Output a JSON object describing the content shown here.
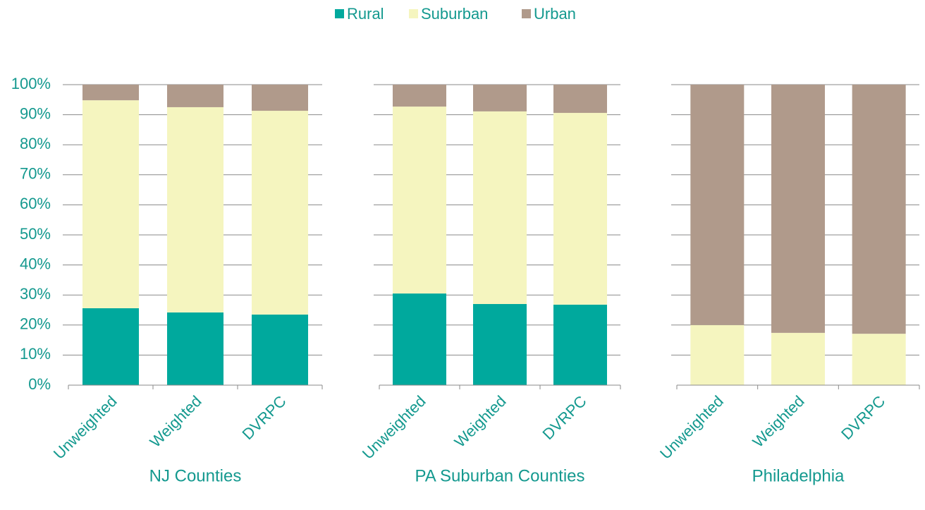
{
  "chart_data": [
    {
      "type": "bar",
      "stacked": true,
      "xlabel": "NJ Counties",
      "categories": [
        "Unweighted",
        "Weighted",
        "DVRPC"
      ],
      "series": [
        {
          "name": "Rural",
          "color": "#00a99d",
          "values": [
            25.6,
            24.2,
            23.5
          ]
        },
        {
          "name": "Suburban",
          "color": "#f5f5bf",
          "values": [
            69.2,
            68.3,
            67.8
          ]
        },
        {
          "name": "Urban",
          "color": "#b09a8b",
          "values": [
            5.2,
            7.5,
            8.7
          ]
        }
      ],
      "ylim": [
        0,
        100
      ],
      "yticks": [
        {
          "value": 0,
          "label": "0%"
        },
        {
          "value": 10,
          "label": "10%"
        },
        {
          "value": 20,
          "label": "20%"
        },
        {
          "value": 30,
          "label": "30%"
        },
        {
          "value": 40,
          "label": "40%"
        },
        {
          "value": 50,
          "label": "50%"
        },
        {
          "value": 60,
          "label": "60%"
        },
        {
          "value": 70,
          "label": "70%"
        },
        {
          "value": 80,
          "label": "80%"
        },
        {
          "value": 90,
          "label": "90%"
        },
        {
          "value": 100,
          "label": "100%"
        }
      ],
      "grid": true,
      "legend": "top"
    },
    {
      "type": "bar",
      "stacked": true,
      "xlabel": "PA Suburban Counties",
      "categories": [
        "Unweighted",
        "Weighted",
        "DVRPC"
      ],
      "series": [
        {
          "name": "Rural",
          "color": "#00a99d",
          "values": [
            30.5,
            27.0,
            26.8
          ]
        },
        {
          "name": "Suburban",
          "color": "#f5f5bf",
          "values": [
            62.2,
            64.1,
            63.8
          ]
        },
        {
          "name": "Urban",
          "color": "#b09a8b",
          "values": [
            7.3,
            8.9,
            9.4
          ]
        }
      ],
      "ylim": [
        0,
        100
      ],
      "yticks": [
        {
          "value": 0,
          "label": "0%"
        },
        {
          "value": 10,
          "label": "10%"
        },
        {
          "value": 20,
          "label": "20%"
        },
        {
          "value": 30,
          "label": "30%"
        },
        {
          "value": 40,
          "label": "40%"
        },
        {
          "value": 50,
          "label": "50%"
        },
        {
          "value": 60,
          "label": "60%"
        },
        {
          "value": 70,
          "label": "70%"
        },
        {
          "value": 80,
          "label": "80%"
        },
        {
          "value": 90,
          "label": "90%"
        },
        {
          "value": 100,
          "label": "100%"
        }
      ],
      "grid": true
    },
    {
      "type": "bar",
      "stacked": true,
      "xlabel": "Philadelphia",
      "categories": [
        "Unweighted",
        "Weighted",
        "DVRPC"
      ],
      "series": [
        {
          "name": "Rural",
          "color": "#00a99d",
          "values": [
            0,
            0,
            0
          ]
        },
        {
          "name": "Suburban",
          "color": "#f5f5bf",
          "values": [
            20.0,
            17.4,
            17.1
          ]
        },
        {
          "name": "Urban",
          "color": "#b09a8b",
          "values": [
            80.0,
            82.6,
            82.9
          ]
        }
      ],
      "ylim": [
        0,
        100
      ],
      "yticks": [
        {
          "value": 0,
          "label": "0%"
        },
        {
          "value": 10,
          "label": "10%"
        },
        {
          "value": 20,
          "label": "20%"
        },
        {
          "value": 30,
          "label": "30%"
        },
        {
          "value": 40,
          "label": "40%"
        },
        {
          "value": 50,
          "label": "50%"
        },
        {
          "value": 60,
          "label": "60%"
        },
        {
          "value": 70,
          "label": "70%"
        },
        {
          "value": 80,
          "label": "80%"
        },
        {
          "value": 90,
          "label": "90%"
        },
        {
          "value": 100,
          "label": "100%"
        }
      ],
      "grid": true
    }
  ]
}
